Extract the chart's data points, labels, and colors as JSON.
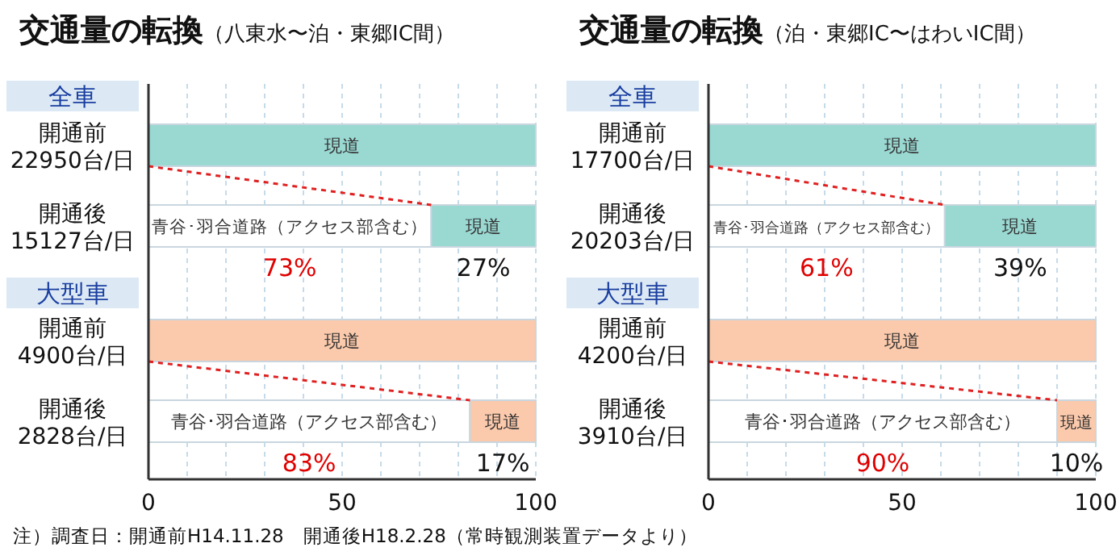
{
  "chart_data": [
    {
      "type": "bar",
      "orientation": "horizontal",
      "stacked": true,
      "title": "交通量の転換",
      "subtitle": "（八東水〜泊・東郷IC間）",
      "categories": [
        "開通前\n22950台/日",
        "開通後\n15127台/日",
        "開通前\n4900台/日",
        "開通後\n2828台/日"
      ],
      "series": [
        {
          "name": "青谷･羽合道路（アクセス部含む）",
          "color": "#ffffff",
          "values": [
            0,
            73,
            0,
            83
          ],
          "value_labels": [
            null,
            "73%",
            null,
            "83%"
          ]
        },
        {
          "name": "現道",
          "colors": [
            "#9ad8d2",
            "#9ad8d2",
            "#fbc9ab",
            "#fbc9ab"
          ],
          "values": [
            100,
            27,
            100,
            17
          ],
          "value_labels": [
            null,
            "27%",
            null,
            "17%"
          ]
        }
      ],
      "xlim": [
        0,
        100
      ],
      "xticks": [
        0,
        {
          "value": 10,
          "label": null
        },
        {
          "value": 20,
          "label": null
        },
        {
          "value": 30,
          "label": null
        },
        {
          "value": 40,
          "label": null
        },
        50,
        {
          "value": 60,
          "label": null
        },
        {
          "value": 70,
          "label": null
        },
        {
          "value": 80,
          "label": null
        },
        {
          "value": 90,
          "label": null
        },
        100
      ],
      "grid": "x",
      "annotations": [
        "全車",
        "大型車",
        "注）調査日：開通前H14.11.28　開通後H18.2.28（常時観測装置データより）"
      ]
    },
    {
      "type": "bar",
      "orientation": "horizontal",
      "stacked": true,
      "title": "交通量の転換",
      "subtitle": "（泊・東郷IC〜はわいIC間）",
      "categories": [
        "開通前\n17700台/日",
        "開通後\n20203台/日",
        "開通前\n4200台/日",
        "開通後\n3910台/日"
      ],
      "series": [
        {
          "name": "青谷･羽合道路（アクセス部含む）",
          "color": "#ffffff",
          "values": [
            0,
            61,
            0,
            90
          ],
          "value_labels": [
            null,
            "61%",
            null,
            "90%"
          ]
        },
        {
          "name": "現道",
          "colors": [
            "#9ad8d2",
            "#9ad8d2",
            "#fbc9ab",
            "#fbc9ab"
          ],
          "values": [
            100,
            39,
            100,
            10
          ],
          "value_labels": [
            null,
            "39%",
            null,
            "10%"
          ]
        }
      ],
      "xlim": [
        0,
        100
      ],
      "xticks": [
        0,
        {
          "value": 10,
          "label": null
        },
        {
          "value": 20,
          "label": null
        },
        {
          "value": 30,
          "label": null
        },
        {
          "value": 40,
          "label": null
        },
        50,
        {
          "value": 60,
          "label": null
        },
        {
          "value": 70,
          "label": null
        },
        {
          "value": 80,
          "label": null
        },
        {
          "value": 90,
          "label": null
        },
        100
      ],
      "grid": "x",
      "annotations": [
        "全車",
        "大型車"
      ]
    }
  ]
}
